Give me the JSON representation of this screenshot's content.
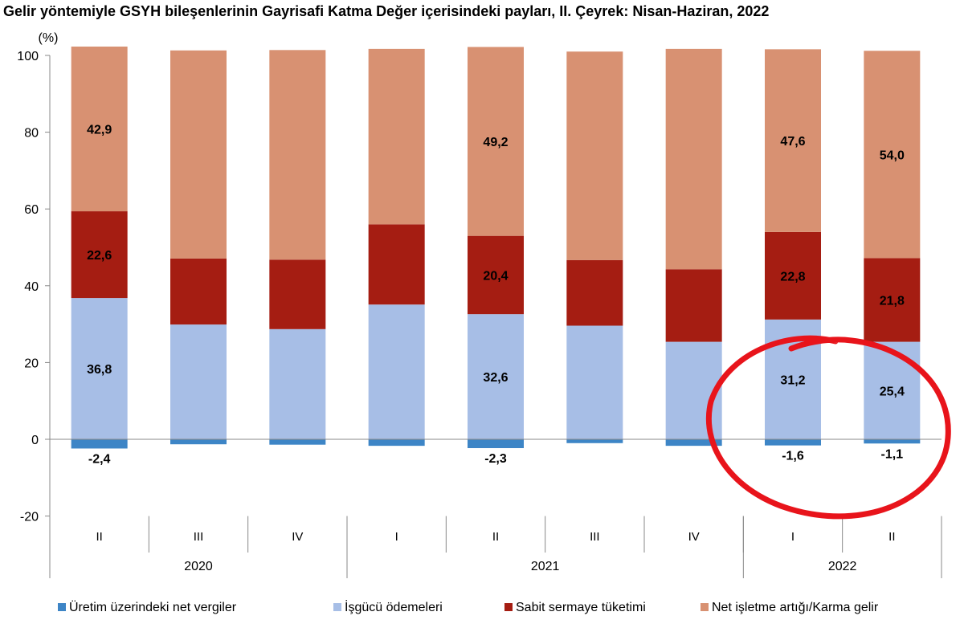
{
  "chart_data": {
    "type": "bar",
    "stacked": true,
    "title": "Gelir yöntemiyle GSYH bileşenlerinin Gayrisafi Katma Değer içerisindeki payları, II. Çeyrek: Nisan-Haziran, 2022",
    "ylabel": "(%)",
    "ylim": [
      -20,
      100
    ],
    "yticks": [
      -20,
      0,
      20,
      40,
      60,
      80,
      100
    ],
    "grid": false,
    "legend_position": "bottom",
    "categories": [
      "II",
      "III",
      "IV",
      "I",
      "II",
      "III",
      "IV",
      "I",
      "II"
    ],
    "year_groups": [
      {
        "label": "2020",
        "count": 3
      },
      {
        "label": "2021",
        "count": 4
      },
      {
        "label": "2022",
        "count": 2
      }
    ],
    "series": [
      {
        "name": "Üretim üzerindeki net vergiler",
        "color": "#3d85c6",
        "values": [
          -2.4,
          -1.3,
          -1.4,
          -1.7,
          -2.3,
          -1.0,
          -1.7,
          -1.6,
          -1.1
        ],
        "labels": [
          "-2,4",
          "",
          "",
          "",
          "-2,3",
          "",
          "",
          "-1,6",
          "-1,1"
        ]
      },
      {
        "name": "İşgücü ödemeleri",
        "color": "#a7bee6",
        "values": [
          36.8,
          29.9,
          28.7,
          35.1,
          32.6,
          29.6,
          25.4,
          31.2,
          25.4
        ],
        "labels": [
          "36,8",
          "",
          "",
          "",
          "32,6",
          "",
          "",
          "31,2",
          "25,4"
        ]
      },
      {
        "name": "Sabit sermaye tüketimi",
        "color": "#a51d12",
        "values": [
          22.6,
          17.2,
          18.1,
          20.9,
          20.4,
          17.1,
          18.9,
          22.8,
          21.8
        ],
        "labels": [
          "22,6",
          "",
          "",
          "",
          "20,4",
          "",
          "",
          "22,8",
          "21,8"
        ]
      },
      {
        "name": "Net işletme artığı/Karma gelir",
        "color": "#d89172",
        "values": [
          42.9,
          54.2,
          54.6,
          45.7,
          49.2,
          54.3,
          57.4,
          47.6,
          54.0
        ],
        "labels": [
          "42,9",
          "",
          "",
          "",
          "49,2",
          "",
          "",
          "47,6",
          "54,0"
        ]
      }
    ],
    "annotation": {
      "type": "hand-drawn-circle",
      "color": "#e8141b",
      "around": "2022"
    }
  }
}
